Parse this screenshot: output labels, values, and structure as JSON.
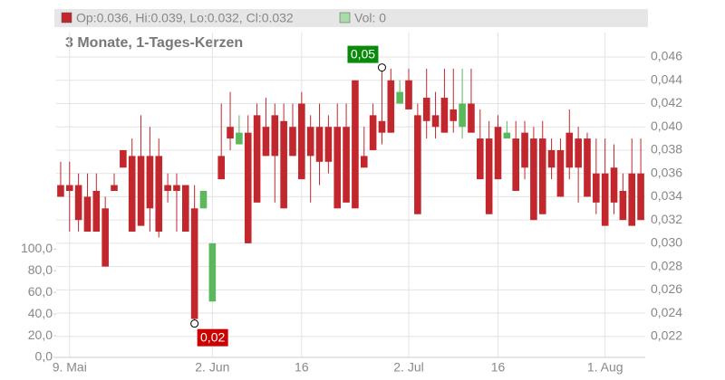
{
  "chart_data": {
    "type": "candlestick",
    "header": "Op:0.036, Hi:0.039, Lo:0.032, Cl:0.032",
    "volume_header": "Vol: 0",
    "subtitle": "3 Monate, 1-Tages-Kerzen",
    "up_color": "#5cb85c",
    "down_color": "#c1272d",
    "categories": [
      null,
      "9. Mai",
      null,
      null,
      null,
      null,
      null,
      null,
      null,
      null,
      null,
      null,
      null,
      null,
      null,
      null,
      null,
      "2. Jun",
      null,
      null,
      null,
      null,
      null,
      null,
      null,
      null,
      null,
      "16",
      null,
      null,
      null,
      null,
      null,
      null,
      null,
      null,
      null,
      null,
      null,
      "2. Jul",
      null,
      null,
      null,
      null,
      null,
      null,
      null,
      null,
      null,
      "16",
      null,
      null,
      null,
      null,
      null,
      null,
      null,
      null,
      null,
      null,
      null,
      "1. Aug",
      null,
      null,
      null,
      null
    ],
    "open": [
      0.035,
      0.035,
      0.035,
      0.034,
      0.0345,
      0.033,
      0.035,
      0.038,
      0.0375,
      0.0375,
      0.0375,
      0.0375,
      0.035,
      0.035,
      0.035,
      0.033,
      0.033,
      0.025,
      0.0375,
      0.04,
      0.0385,
      0.0395,
      0.041,
      0.04,
      0.041,
      0.0405,
      0.04,
      0.042,
      0.04,
      0.04,
      0.04,
      0.04,
      0.04,
      0.044,
      0.0375,
      0.041,
      0.0405,
      0.044,
      0.042,
      0.044,
      0.041,
      0.0425,
      0.041,
      0.0425,
      0.0415,
      0.04,
      0.042,
      0.039,
      0.039,
      0.04,
      0.039,
      0.039,
      0.0395,
      0.039,
      0.039,
      0.038,
      0.038,
      0.0395,
      0.039,
      0.039,
      0.036,
      0.036,
      0.0365,
      0.0345,
      0.036,
      0.036
    ],
    "high": [
      0.037,
      0.037,
      0.036,
      0.036,
      0.036,
      0.034,
      0.036,
      0.038,
      0.039,
      0.041,
      0.04,
      0.039,
      0.036,
      0.036,
      0.035,
      0.035,
      0.0345,
      0.03,
      0.042,
      0.043,
      0.041,
      0.041,
      0.042,
      0.0425,
      0.042,
      0.042,
      0.042,
      0.043,
      0.041,
      0.042,
      0.041,
      0.042,
      0.042,
      0.044,
      0.04,
      0.042,
      0.0451,
      0.045,
      0.044,
      0.045,
      0.042,
      0.045,
      0.043,
      0.045,
      0.045,
      0.045,
      0.045,
      0.0415,
      0.0405,
      0.041,
      0.0405,
      0.0405,
      0.0405,
      0.04,
      0.0405,
      0.039,
      0.039,
      0.0415,
      0.04,
      0.0395,
      0.039,
      0.039,
      0.0385,
      0.036,
      0.039,
      0.039
    ],
    "low": [
      0.034,
      0.031,
      0.031,
      0.031,
      0.031,
      0.028,
      0.0345,
      0.0365,
      0.031,
      0.0315,
      0.031,
      0.0305,
      0.0335,
      0.031,
      0.031,
      0.0231,
      0.033,
      0.025,
      0.0355,
      0.038,
      0.0385,
      0.03,
      0.0335,
      0.0375,
      0.0335,
      0.033,
      0.0375,
      0.0355,
      0.0335,
      0.035,
      0.036,
      0.033,
      0.0335,
      0.033,
      0.0365,
      0.038,
      0.0385,
      0.0395,
      0.042,
      0.0415,
      0.0325,
      0.039,
      0.039,
      0.0395,
      0.0395,
      0.039,
      0.0395,
      0.0355,
      0.0325,
      0.0355,
      0.039,
      0.0345,
      0.0355,
      0.032,
      0.0325,
      0.0355,
      0.034,
      0.0355,
      0.0335,
      0.034,
      0.0325,
      0.0315,
      0.0325,
      0.032,
      0.0315,
      0.032
    ],
    "close": [
      0.034,
      0.0345,
      0.032,
      0.031,
      0.031,
      0.028,
      0.0345,
      0.0365,
      0.031,
      0.0315,
      0.033,
      0.031,
      0.0345,
      0.0345,
      0.031,
      0.0235,
      0.0345,
      0.03,
      0.0355,
      0.039,
      0.0395,
      0.03,
      0.0335,
      0.0375,
      0.0375,
      0.033,
      0.0375,
      0.0355,
      0.0375,
      0.037,
      0.037,
      0.033,
      0.0335,
      0.033,
      0.0365,
      0.038,
      0.0395,
      0.0395,
      0.043,
      0.0415,
      0.0325,
      0.0405,
      0.04,
      0.0395,
      0.0405,
      0.042,
      0.0395,
      0.0355,
      0.0325,
      0.0355,
      0.0395,
      0.0345,
      0.0365,
      0.032,
      0.0325,
      0.0365,
      0.034,
      0.0365,
      0.0365,
      0.034,
      0.0335,
      0.0315,
      0.0335,
      0.032,
      0.0315,
      0.032
    ],
    "ylim": [
      0.0202,
      0.0481
    ],
    "yticks": [
      {
        "value": 0.022,
        "label": "0,022"
      },
      {
        "value": 0.024,
        "label": "0,024"
      },
      {
        "value": 0.026,
        "label": "0,026"
      },
      {
        "value": 0.028,
        "label": "0,028"
      },
      {
        "value": 0.03,
        "label": "0,030"
      },
      {
        "value": 0.032,
        "label": "0,032"
      },
      {
        "value": 0.034,
        "label": "0,034"
      },
      {
        "value": 0.036,
        "label": "0,036"
      },
      {
        "value": 0.038,
        "label": "0,038"
      },
      {
        "value": 0.04,
        "label": "0,040"
      },
      {
        "value": 0.042,
        "label": "0,042"
      },
      {
        "value": 0.044,
        "label": "0,044"
      },
      {
        "value": 0.046,
        "label": "0,046"
      }
    ],
    "y2lim": [
      0,
      300
    ],
    "y2ticks": [
      {
        "value": 0,
        "label": "0,0"
      },
      {
        "value": 20,
        "label": "20,0"
      },
      {
        "value": 40,
        "label": "40,0"
      },
      {
        "value": 60,
        "label": "60,0"
      },
      {
        "value": 80,
        "label": "80,0"
      },
      {
        "value": 100,
        "label": "100,0"
      }
    ],
    "annotations": [
      {
        "x": 36,
        "value": 0.0451,
        "label": "0,05",
        "color": "#0a8a0a"
      },
      {
        "x": 15,
        "value": 0.0231,
        "label": "0,02",
        "color": "#cc0000"
      }
    ],
    "grid": true
  }
}
